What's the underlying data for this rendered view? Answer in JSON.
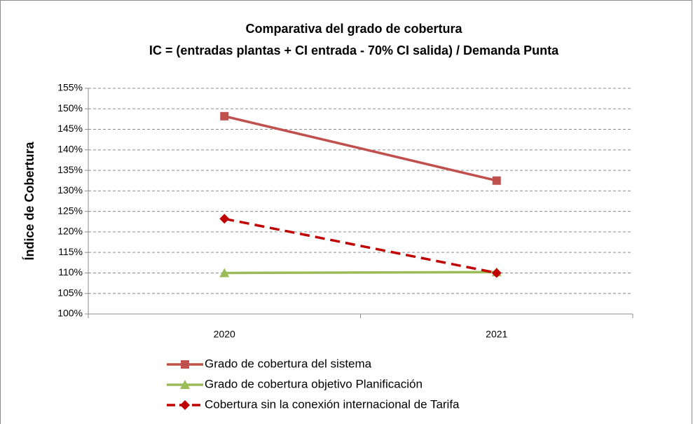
{
  "chart_data": {
    "type": "line",
    "title": "Comparativa del grado de cobertura",
    "subtitle": "IC = (entradas plantas + CI entrada - 70% CI salida) / Demanda Punta",
    "y_label": "Índice de Cobertura",
    "categories": [
      "2020",
      "2021"
    ],
    "series": [
      {
        "name": "Grado de cobertura del sistema",
        "color": "#c0504d",
        "marker": "square",
        "dashed": false,
        "values": [
          148.2,
          132.5
        ]
      },
      {
        "name": "Grado de cobertura objetivo Planificación",
        "color": "#9bbb59",
        "marker": "triangle",
        "dashed": false,
        "values": [
          110,
          110.2
        ]
      },
      {
        "name": "Cobertura sin la conexión internacional de Tarifa",
        "color": "#c00000",
        "marker": "diamond",
        "dashed": true,
        "values": [
          123.2,
          110
        ]
      }
    ],
    "ylim": [
      100,
      155
    ],
    "yticks": [
      {
        "value": 100,
        "label": "100%"
      },
      {
        "value": 105,
        "label": "105%"
      },
      {
        "value": 110,
        "label": "110%"
      },
      {
        "value": 115,
        "label": "115%"
      },
      {
        "value": 120,
        "label": "120%"
      },
      {
        "value": 125,
        "label": "125%"
      },
      {
        "value": 130,
        "label": "130%"
      },
      {
        "value": 135,
        "label": "135%"
      },
      {
        "value": 140,
        "label": "140%"
      },
      {
        "value": 145,
        "label": "145%"
      },
      {
        "value": 150,
        "label": "150%"
      },
      {
        "value": 155,
        "label": "155%"
      }
    ],
    "grid": true,
    "legend": "bottom"
  }
}
